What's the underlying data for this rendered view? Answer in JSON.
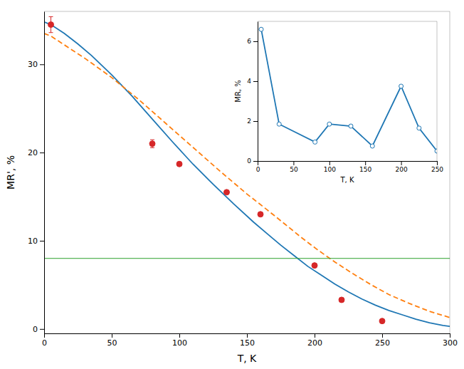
{
  "chart_data": [
    {
      "type": "line",
      "xlabel": "T, K",
      "ylabel": "MR', %",
      "xlim": [
        0,
        300
      ],
      "ylim": [
        -0.5,
        36
      ],
      "xticks": [
        0,
        50,
        100,
        150,
        200,
        250,
        300
      ],
      "yticks": [
        0,
        10,
        20,
        30
      ],
      "series": [
        {
          "type": "line",
          "line_style": "solid",
          "x": [
            0,
            5,
            15,
            25,
            35,
            50,
            65,
            80,
            95,
            110,
            125,
            140,
            155,
            165,
            175,
            185,
            195,
            205,
            215,
            225,
            235,
            245,
            255,
            265,
            275,
            285,
            295,
            300
          ],
          "values": [
            34.8,
            34.5,
            33.5,
            32.3,
            31.0,
            28.8,
            26.4,
            23.8,
            21.2,
            18.7,
            16.4,
            14.2,
            12.1,
            10.8,
            9.5,
            8.3,
            7.1,
            6.1,
            5.1,
            4.2,
            3.4,
            2.7,
            2.1,
            1.6,
            1.1,
            0.7,
            0.4,
            0.3
          ]
        },
        {
          "type": "line",
          "line_style": "dashed",
          "x": [
            0,
            5,
            15,
            30,
            50,
            70,
            90,
            110,
            130,
            150,
            165,
            178,
            190,
            202,
            215,
            228,
            242,
            255,
            270,
            285,
            300
          ],
          "values": [
            33.5,
            33.2,
            32.2,
            30.7,
            28.5,
            26.0,
            23.3,
            20.6,
            17.9,
            15.3,
            13.5,
            11.9,
            10.4,
            9.0,
            7.6,
            6.3,
            5.0,
            3.9,
            2.9,
            2.0,
            1.3
          ]
        },
        {
          "type": "hline",
          "values": [
            8.0
          ]
        },
        {
          "type": "scatter",
          "marker": "circle",
          "x": [
            5,
            80,
            100,
            135,
            160,
            200,
            220,
            250
          ],
          "values": [
            34.5,
            21.0,
            18.7,
            15.5,
            13.0,
            7.2,
            3.3,
            0.9
          ],
          "error": [
            0.9,
            0.45,
            0.0,
            0.0,
            0.0,
            0.0,
            0.0,
            0.0
          ]
        }
      ]
    },
    {
      "type": "line",
      "xlabel": "T, K",
      "ylabel": "MR, %",
      "xlim": [
        0,
        250
      ],
      "ylim": [
        0,
        7
      ],
      "xticks": [
        0,
        50,
        100,
        150,
        200,
        250
      ],
      "yticks": [
        0,
        2,
        4,
        6
      ],
      "series": [
        {
          "type": "line",
          "line_style": "solid",
          "marker": "circle",
          "x": [
            5,
            30,
            80,
            100,
            130,
            160,
            200,
            225,
            250
          ],
          "values": [
            6.6,
            1.85,
            0.95,
            1.85,
            1.75,
            0.75,
            3.75,
            1.65,
            0.5
          ]
        }
      ]
    }
  ]
}
